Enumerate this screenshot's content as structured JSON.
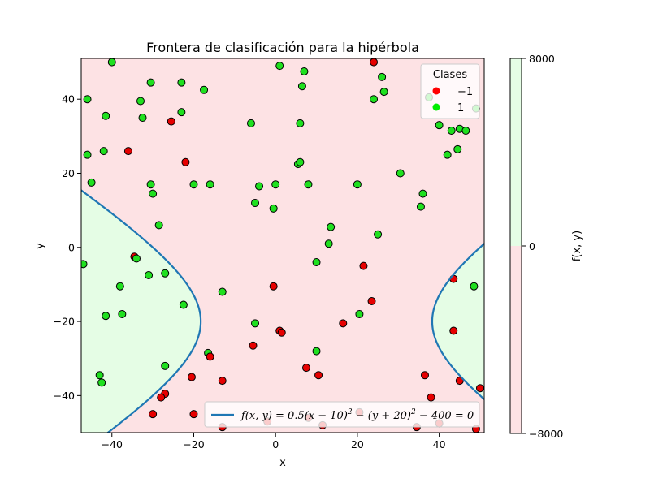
{
  "chart_data": {
    "type": "scatter",
    "title": "Frontera de clasificación para la hipérbola",
    "xlabel": "x",
    "ylabel": "y",
    "xlim": [
      -47.5,
      51
    ],
    "ylim": [
      -50,
      51
    ],
    "xticks": [
      -40,
      -20,
      0,
      20,
      40
    ],
    "yticks": [
      -40,
      -20,
      0,
      20,
      40
    ],
    "xtick_labels": [
      "−40",
      "−20",
      "0",
      "20",
      "40"
    ],
    "ytick_labels": [
      "−40",
      "−20",
      "0",
      "20",
      "40"
    ],
    "grid": false,
    "boundary": {
      "label": "f(x, y) = 0.5(x − 10)² − (y + 20)² − 400 = 0",
      "label_parts": [
        "f(x, y) = 0.5(x − 10)",
        "2",
        " − (y + 20)",
        "2",
        " − 400 = 0"
      ],
      "a": 0.5,
      "h": 10,
      "k": -20,
      "c": 400,
      "color": "#1f77b4",
      "legend_position": "lower right"
    },
    "regions": {
      "positive_color": "#e5fde5",
      "negative_color": "#fde2e4"
    },
    "colorbar": {
      "label": "f(x, y)",
      "ticks": [
        "8000",
        "0",
        "−8000"
      ],
      "values": [
        8000,
        0,
        -8000
      ]
    },
    "legend": {
      "title": "Clases",
      "position": "upper right",
      "entries": [
        {
          "label": "−1",
          "color": "#ff0000"
        },
        {
          "label": "1",
          "color": "#00ee00"
        }
      ]
    },
    "class_colors": {
      "-1": "#e60000",
      "1": "#1fe01f"
    },
    "points": [
      {
        "x": -40,
        "y": 50,
        "c": 1
      },
      {
        "x": -46,
        "y": 40,
        "c": 1
      },
      {
        "x": -41.5,
        "y": 35.5,
        "c": 1
      },
      {
        "x": -46,
        "y": 25,
        "c": 1
      },
      {
        "x": -42,
        "y": 26,
        "c": 1
      },
      {
        "x": -45,
        "y": 17.5,
        "c": 1
      },
      {
        "x": -47,
        "y": -4.5,
        "c": 1
      },
      {
        "x": -38,
        "y": -10.5,
        "c": 1
      },
      {
        "x": -37.5,
        "y": -18,
        "c": 1
      },
      {
        "x": -41.5,
        "y": -18.5,
        "c": 1
      },
      {
        "x": -43,
        "y": -34.5,
        "c": 1
      },
      {
        "x": -42.5,
        "y": -36.5,
        "c": 1
      },
      {
        "x": -33,
        "y": 39.5,
        "c": 1
      },
      {
        "x": -32.5,
        "y": 35,
        "c": 1
      },
      {
        "x": -30.5,
        "y": 44.5,
        "c": 1
      },
      {
        "x": -30.5,
        "y": 17,
        "c": 1
      },
      {
        "x": -30,
        "y": 14.5,
        "c": 1
      },
      {
        "x": -28.5,
        "y": 6,
        "c": 1
      },
      {
        "x": -34.5,
        "y": -2.5,
        "c": -1
      },
      {
        "x": -34,
        "y": -3,
        "c": 1
      },
      {
        "x": -31,
        "y": -7.5,
        "c": 1
      },
      {
        "x": -27,
        "y": -7,
        "c": 1
      },
      {
        "x": -27,
        "y": -32,
        "c": 1
      },
      {
        "x": -27,
        "y": -39.5,
        "c": -1
      },
      {
        "x": -28,
        "y": -40.5,
        "c": -1
      },
      {
        "x": -30,
        "y": -45,
        "c": -1
      },
      {
        "x": -36,
        "y": 26,
        "c": -1
      },
      {
        "x": -25.5,
        "y": 34,
        "c": -1
      },
      {
        "x": -23,
        "y": 44.5,
        "c": 1
      },
      {
        "x": -23,
        "y": 36.5,
        "c": 1
      },
      {
        "x": -22,
        "y": 23,
        "c": -1
      },
      {
        "x": -20,
        "y": 17,
        "c": 1
      },
      {
        "x": -22.5,
        "y": -15.5,
        "c": 1
      },
      {
        "x": -20.5,
        "y": -35,
        "c": -1
      },
      {
        "x": -20,
        "y": -45,
        "c": -1
      },
      {
        "x": -17.5,
        "y": 42.5,
        "c": 1
      },
      {
        "x": -16,
        "y": 17,
        "c": 1
      },
      {
        "x": -16.5,
        "y": -28.5,
        "c": 1
      },
      {
        "x": -16,
        "y": -29.5,
        "c": -1
      },
      {
        "x": -13,
        "y": -12,
        "c": 1
      },
      {
        "x": -13,
        "y": -36,
        "c": -1
      },
      {
        "x": -13,
        "y": -48.5,
        "c": -1
      },
      {
        "x": -6,
        "y": 33.5,
        "c": 1
      },
      {
        "x": -5,
        "y": 12,
        "c": 1
      },
      {
        "x": -4,
        "y": 16.5,
        "c": 1
      },
      {
        "x": -5,
        "y": -20.5,
        "c": 1
      },
      {
        "x": -5.5,
        "y": -26.5,
        "c": -1
      },
      {
        "x": -2,
        "y": -47,
        "c": -1
      },
      {
        "x": 1,
        "y": 49,
        "c": 1
      },
      {
        "x": 0,
        "y": 17,
        "c": 1
      },
      {
        "x": -0.5,
        "y": 10.5,
        "c": 1
      },
      {
        "x": -0.5,
        "y": -10.5,
        "c": -1
      },
      {
        "x": 1,
        "y": -22.5,
        "c": -1
      },
      {
        "x": 1.5,
        "y": -23,
        "c": -1
      },
      {
        "x": 7,
        "y": 47.5,
        "c": 1
      },
      {
        "x": 6.5,
        "y": 43.5,
        "c": 1
      },
      {
        "x": 6,
        "y": 33.5,
        "c": 1
      },
      {
        "x": 5.5,
        "y": 22.5,
        "c": 1
      },
      {
        "x": 6,
        "y": 23,
        "c": 1
      },
      {
        "x": 8,
        "y": 17,
        "c": 1
      },
      {
        "x": 7.5,
        "y": -32.5,
        "c": -1
      },
      {
        "x": 8,
        "y": -46,
        "c": -1
      },
      {
        "x": 10,
        "y": -28,
        "c": 1
      },
      {
        "x": 10.5,
        "y": -34.5,
        "c": -1
      },
      {
        "x": 10,
        "y": -4,
        "c": 1
      },
      {
        "x": 13.5,
        "y": 5.5,
        "c": 1
      },
      {
        "x": 13,
        "y": 1,
        "c": 1
      },
      {
        "x": 11.5,
        "y": -48,
        "c": -1
      },
      {
        "x": 16.5,
        "y": -20.5,
        "c": -1
      },
      {
        "x": 20,
        "y": 17,
        "c": 1
      },
      {
        "x": 21.5,
        "y": -5,
        "c": -1
      },
      {
        "x": 20.5,
        "y": -18,
        "c": 1
      },
      {
        "x": 23.5,
        "y": -14.5,
        "c": -1
      },
      {
        "x": 20.5,
        "y": -44.5,
        "c": -1
      },
      {
        "x": 24,
        "y": 50,
        "c": -1
      },
      {
        "x": 24,
        "y": 40,
        "c": 1
      },
      {
        "x": 26,
        "y": 46,
        "c": 1
      },
      {
        "x": 26.5,
        "y": 42,
        "c": 1
      },
      {
        "x": 25,
        "y": 3.5,
        "c": 1
      },
      {
        "x": 30.5,
        "y": 20,
        "c": 1
      },
      {
        "x": 36,
        "y": 14.5,
        "c": 1
      },
      {
        "x": 35.5,
        "y": 11,
        "c": 1
      },
      {
        "x": 37.5,
        "y": 40.5,
        "c": 1
      },
      {
        "x": 40,
        "y": 33,
        "c": 1
      },
      {
        "x": 43,
        "y": 31.5,
        "c": 1
      },
      {
        "x": 42,
        "y": 25,
        "c": 1
      },
      {
        "x": 44.5,
        "y": 26.5,
        "c": 1
      },
      {
        "x": 45,
        "y": 32,
        "c": 1
      },
      {
        "x": 46.5,
        "y": 31.5,
        "c": 1
      },
      {
        "x": 49,
        "y": 37.5,
        "c": 1
      },
      {
        "x": 43.5,
        "y": -8.5,
        "c": -1
      },
      {
        "x": 48.5,
        "y": -10.5,
        "c": 1
      },
      {
        "x": 43.5,
        "y": -22.5,
        "c": -1
      },
      {
        "x": 36.5,
        "y": -34.5,
        "c": -1
      },
      {
        "x": 45,
        "y": -36,
        "c": -1
      },
      {
        "x": 38,
        "y": -40.5,
        "c": -1
      },
      {
        "x": 34.5,
        "y": -48.5,
        "c": -1
      },
      {
        "x": 40,
        "y": -47.5,
        "c": -1
      },
      {
        "x": 49,
        "y": -49,
        "c": -1
      },
      {
        "x": 50,
        "y": -38,
        "c": -1
      }
    ]
  }
}
